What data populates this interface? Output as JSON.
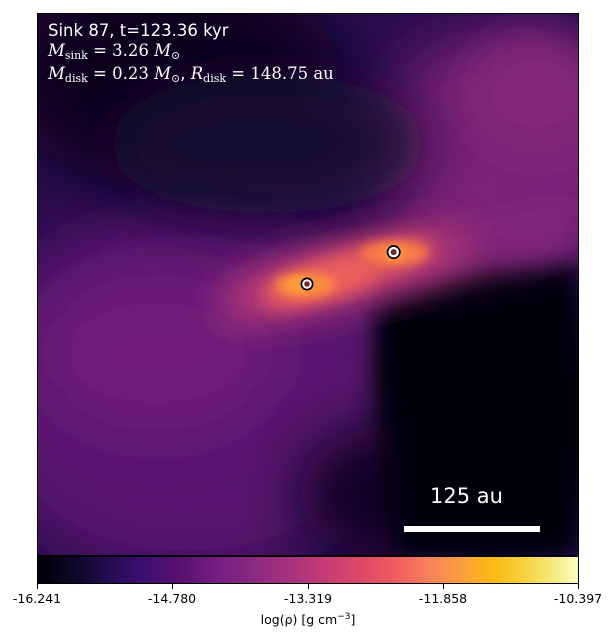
{
  "annotation": {
    "line1": "Sink 87, t=123.36 kyr",
    "m_sink_symbol": "M",
    "m_sink_subscript": "sink",
    "m_sink_value": "= 3.26",
    "m_disk_symbol": "M",
    "m_disk_subscript": "disk",
    "m_disk_value": "= 0.23",
    "r_disk_symbol": "R",
    "r_disk_subscript": "disk",
    "r_disk_value": "= 148.75",
    "r_disk_unit": "au",
    "solar_mass_unit": "M",
    "solar_subscript": "⊙"
  },
  "scale_bar": {
    "label": "125 au"
  },
  "colorbar": {
    "colormap": "inferno",
    "ticks": [
      "-16.241",
      "-14.780",
      "-13.319",
      "-11.858",
      "-10.397"
    ],
    "label_prefix": "log(ρ) [g cm",
    "label_exponent": "−3",
    "label_suffix": "]"
  },
  "sinks": [
    {
      "name": "sink-primary"
    },
    {
      "name": "sink-secondary"
    }
  ],
  "colors": {
    "background_low": "#000004",
    "background_mid": "#57106e",
    "filament": "#e05a4e",
    "core": "#fb9c40",
    "sink_ring": "#ffffff",
    "sink_outline": "#000000"
  }
}
